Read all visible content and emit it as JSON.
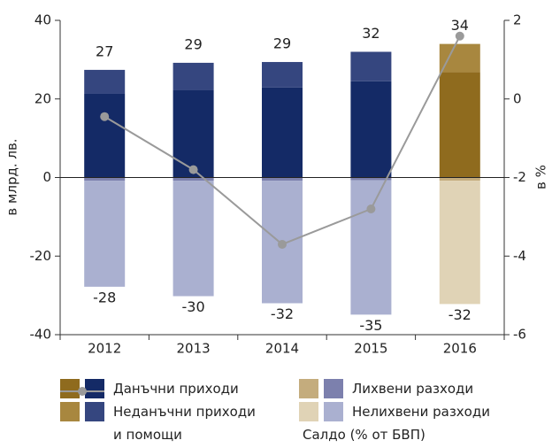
{
  "chart_data": {
    "type": "bar",
    "categories": [
      "2012",
      "2013",
      "2014",
      "2015",
      "2016"
    ],
    "y_label": "в млрд. лв.",
    "y2_label": "в %",
    "ylim": [
      -40,
      40
    ],
    "yticks": [
      -40,
      -20,
      0,
      20,
      40
    ],
    "y2lim": [
      -6,
      2
    ],
    "y2ticks": [
      -6,
      -4,
      -2,
      0,
      2
    ],
    "stacked": true,
    "series": [
      {
        "name": "Данъчни приходи",
        "colors": [
          "#142a66",
          "#142a66",
          "#142a66",
          "#142a66",
          "#8f6b1e"
        ],
        "values": [
          21.3,
          22.2,
          22.9,
          24.5,
          26.8
        ]
      },
      {
        "name": "Неданъчни приходи и помощи",
        "colors": [
          "#35467f",
          "#35467f",
          "#35467f",
          "#35467f",
          "#a8873f"
        ],
        "values": [
          6.1,
          7.0,
          6.5,
          7.5,
          7.2
        ]
      },
      {
        "name": "Лихвени разходи",
        "colors": [
          "#7c80ad",
          "#7c80ad",
          "#7c80ad",
          "#7c80ad",
          "#c4ac7d"
        ],
        "values": [
          -0.8,
          -0.8,
          -0.8,
          -0.7,
          -0.8
        ]
      },
      {
        "name": "Нелихвени разходи",
        "colors": [
          "#aab0d0",
          "#aab0d0",
          "#aab0d0",
          "#aab0d0",
          "#e0d3b6"
        ],
        "values": [
          -27.0,
          -29.4,
          -31.2,
          -34.2,
          -31.4
        ]
      },
      {
        "name": "Салдо (% от БВП)",
        "type": "line",
        "axis": "y2",
        "color": "#9a9a9a",
        "values": [
          -0.45,
          -1.8,
          -3.7,
          -2.8,
          1.6
        ]
      }
    ],
    "revenue_totals": [
      27,
      29,
      29,
      32,
      34
    ],
    "expense_totals": [
      -28,
      -30,
      -32,
      -35,
      -32
    ]
  }
}
